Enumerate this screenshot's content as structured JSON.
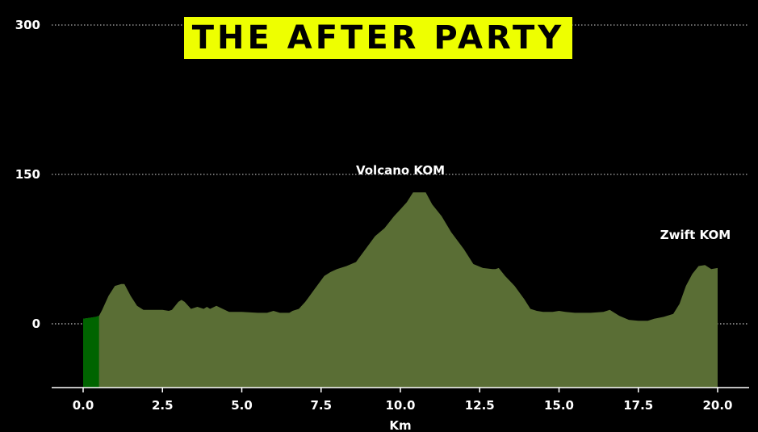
{
  "title": "THE AFTER PARTY",
  "colors": {
    "background": "#000000",
    "profile_fill": "#5a6e35",
    "start_marker": "#006400",
    "title_bg": "#eeff00",
    "title_text": "#000000",
    "grid": "#ffffff"
  },
  "chart_data": {
    "type": "area",
    "title": "THE AFTER PARTY",
    "xlabel": "Km",
    "ylabel": "",
    "xlim": [
      -1.0,
      21.0
    ],
    "ylim": [
      -65,
      300
    ],
    "grid": "horizontal dotted at y ticks",
    "x_ticks": [
      "0.0",
      "2.5",
      "5.0",
      "7.5",
      "10.0",
      "12.5",
      "15.0",
      "17.5",
      "20.0"
    ],
    "x_tick_values": [
      0,
      2.5,
      5,
      7.5,
      10,
      12.5,
      15,
      17.5,
      20
    ],
    "y_ticks": [
      "0",
      "150",
      "300"
    ],
    "y_tick_values": [
      0,
      150,
      300
    ],
    "annotations": [
      {
        "text": "Volcano KOM",
        "x": 10.0,
        "y": 150
      },
      {
        "text": "Zwift KOM",
        "x": 19.3,
        "y": 85
      }
    ],
    "start_segment": {
      "x_start": 0.0,
      "x_end": 0.5
    },
    "series": [
      {
        "x": [
          0.0,
          0.2,
          0.4,
          0.5,
          0.6,
          0.8,
          1.0,
          1.2,
          1.3,
          1.5,
          1.7,
          1.9,
          2.2,
          2.5,
          2.7,
          2.8,
          3.0,
          3.1,
          3.2,
          3.4,
          3.6,
          3.8,
          3.9,
          4.0,
          4.2,
          4.4,
          4.6,
          5.0,
          5.5,
          5.8,
          6.0,
          6.2,
          6.5,
          6.6,
          6.8,
          7.0,
          7.3,
          7.6,
          7.8,
          8.0,
          8.3,
          8.6,
          8.9,
          9.2,
          9.5,
          9.8,
          10.0,
          10.2,
          10.4,
          10.8,
          11.0,
          11.3,
          11.6,
          12.0,
          12.3,
          12.6,
          12.9,
          13.0,
          13.1,
          13.3,
          13.6,
          13.9,
          14.1,
          14.3,
          14.5,
          14.8,
          15.0,
          15.2,
          15.5,
          16.0,
          16.4,
          16.6,
          16.9,
          17.2,
          17.5,
          17.8,
          18.0,
          18.3,
          18.6,
          18.8,
          19.0,
          19.2,
          19.4,
          19.6,
          19.8,
          20.0
        ],
        "values": [
          5,
          6,
          7,
          8,
          14,
          28,
          38,
          40,
          40,
          28,
          18,
          14,
          14,
          14,
          13,
          14,
          22,
          24,
          22,
          15,
          17,
          15,
          17,
          15,
          18,
          15,
          12,
          12,
          11,
          11,
          13,
          11,
          11,
          13,
          15,
          22,
          35,
          48,
          52,
          55,
          58,
          62,
          75,
          88,
          96,
          108,
          115,
          122,
          132,
          132,
          120,
          108,
          92,
          75,
          60,
          56,
          55,
          55,
          56,
          48,
          38,
          25,
          15,
          13,
          12,
          12,
          13,
          12,
          11,
          11,
          12,
          14,
          8,
          4,
          3,
          3,
          5,
          7,
          10,
          20,
          38,
          50,
          58,
          59,
          55,
          56
        ]
      }
    ]
  }
}
